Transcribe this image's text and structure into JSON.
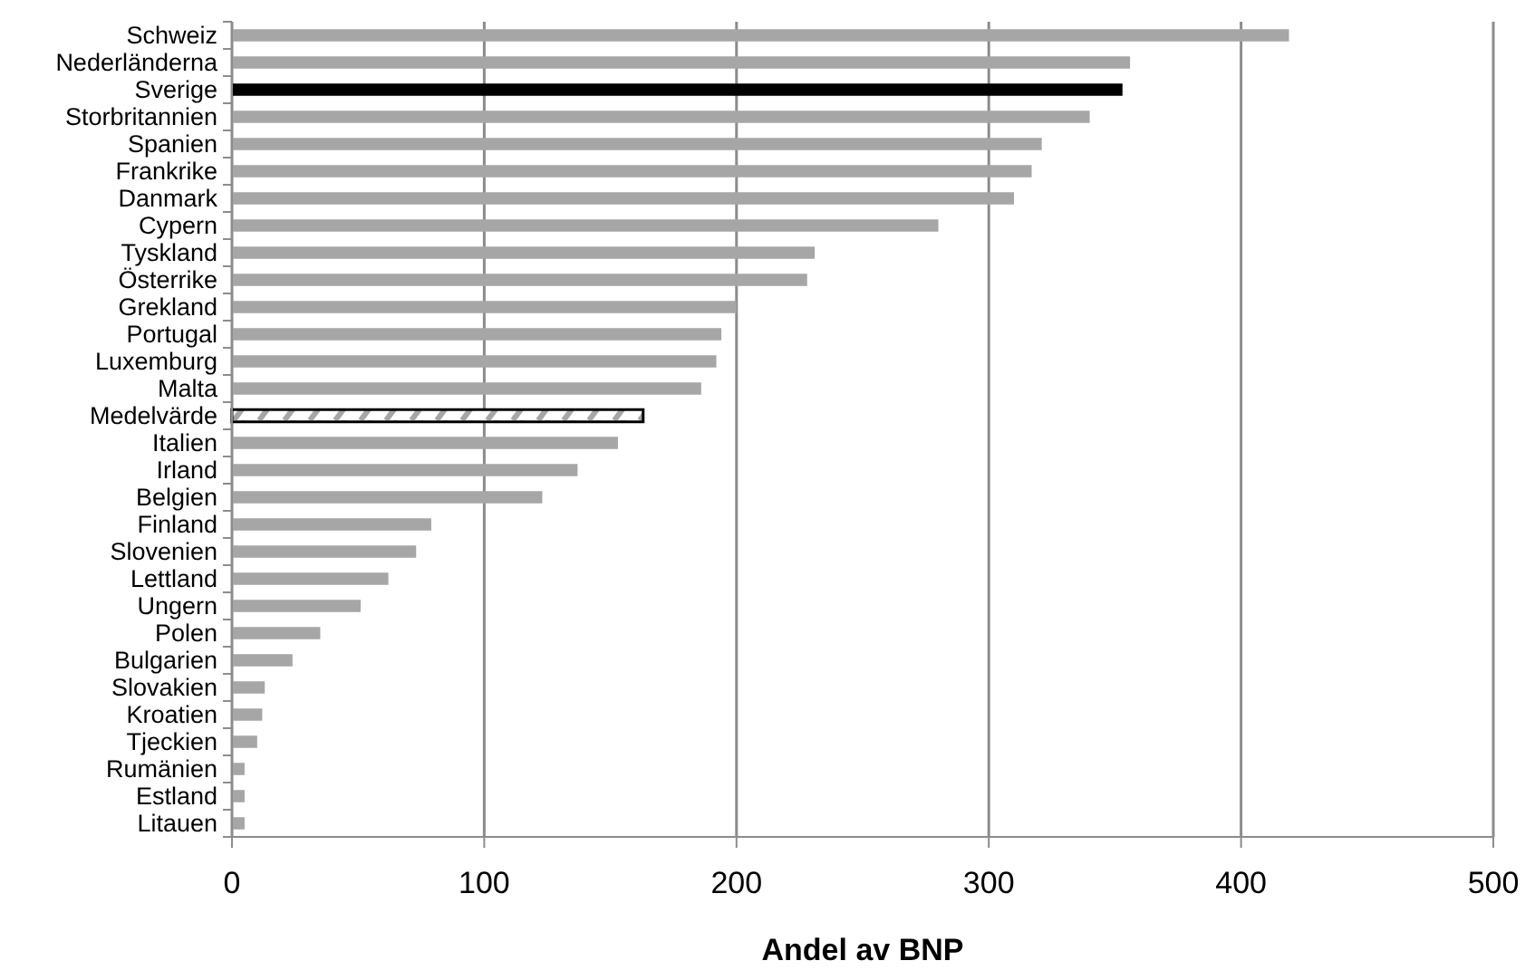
{
  "chart_data": {
    "type": "bar",
    "orientation": "horizontal",
    "xlabel": "Andel av BNP",
    "categories": [
      "Schweiz",
      "Nederländerna",
      "Sverige",
      "Storbritannien",
      "Spanien",
      "Frankrike",
      "Danmark",
      "Cypern",
      "Tyskland",
      "Österrike",
      "Grekland",
      "Portugal",
      "Luxemburg",
      "Malta",
      "Medelvärde",
      "Italien",
      "Irland",
      "Belgien",
      "Finland",
      "Slovenien",
      "Lettland",
      "Ungern",
      "Polen",
      "Bulgarien",
      "Slovakien",
      "Kroatien",
      "Tjeckien",
      "Rumänien",
      "Estland",
      "Litauen"
    ],
    "values": [
      419,
      356,
      353,
      340,
      321,
      317,
      310,
      280,
      231,
      228,
      200,
      194,
      192,
      186,
      163,
      153,
      137,
      123,
      79,
      73,
      62,
      51,
      35,
      24,
      13,
      12,
      10,
      5,
      5,
      5
    ],
    "colors": [
      "#a6a6a6",
      "#a6a6a6",
      "#000000",
      "#a6a6a6",
      "#a6a6a6",
      "#a6a6a6",
      "#a6a6a6",
      "#a6a6a6",
      "#a6a6a6",
      "#a6a6a6",
      "#a6a6a6",
      "#a6a6a6",
      "#a6a6a6",
      "#a6a6a6",
      "#ffffff",
      "#a6a6a6",
      "#a6a6a6",
      "#a6a6a6",
      "#a6a6a6",
      "#a6a6a6",
      "#a6a6a6",
      "#a6a6a6",
      "#a6a6a6",
      "#a6a6a6",
      "#a6a6a6",
      "#a6a6a6",
      "#a6a6a6",
      "#a6a6a6",
      "#a6a6a6",
      "#a6a6a6"
    ],
    "xlim": [
      0,
      500
    ],
    "xticks": [
      0,
      100,
      200,
      300,
      400,
      500
    ],
    "grid": "x"
  }
}
